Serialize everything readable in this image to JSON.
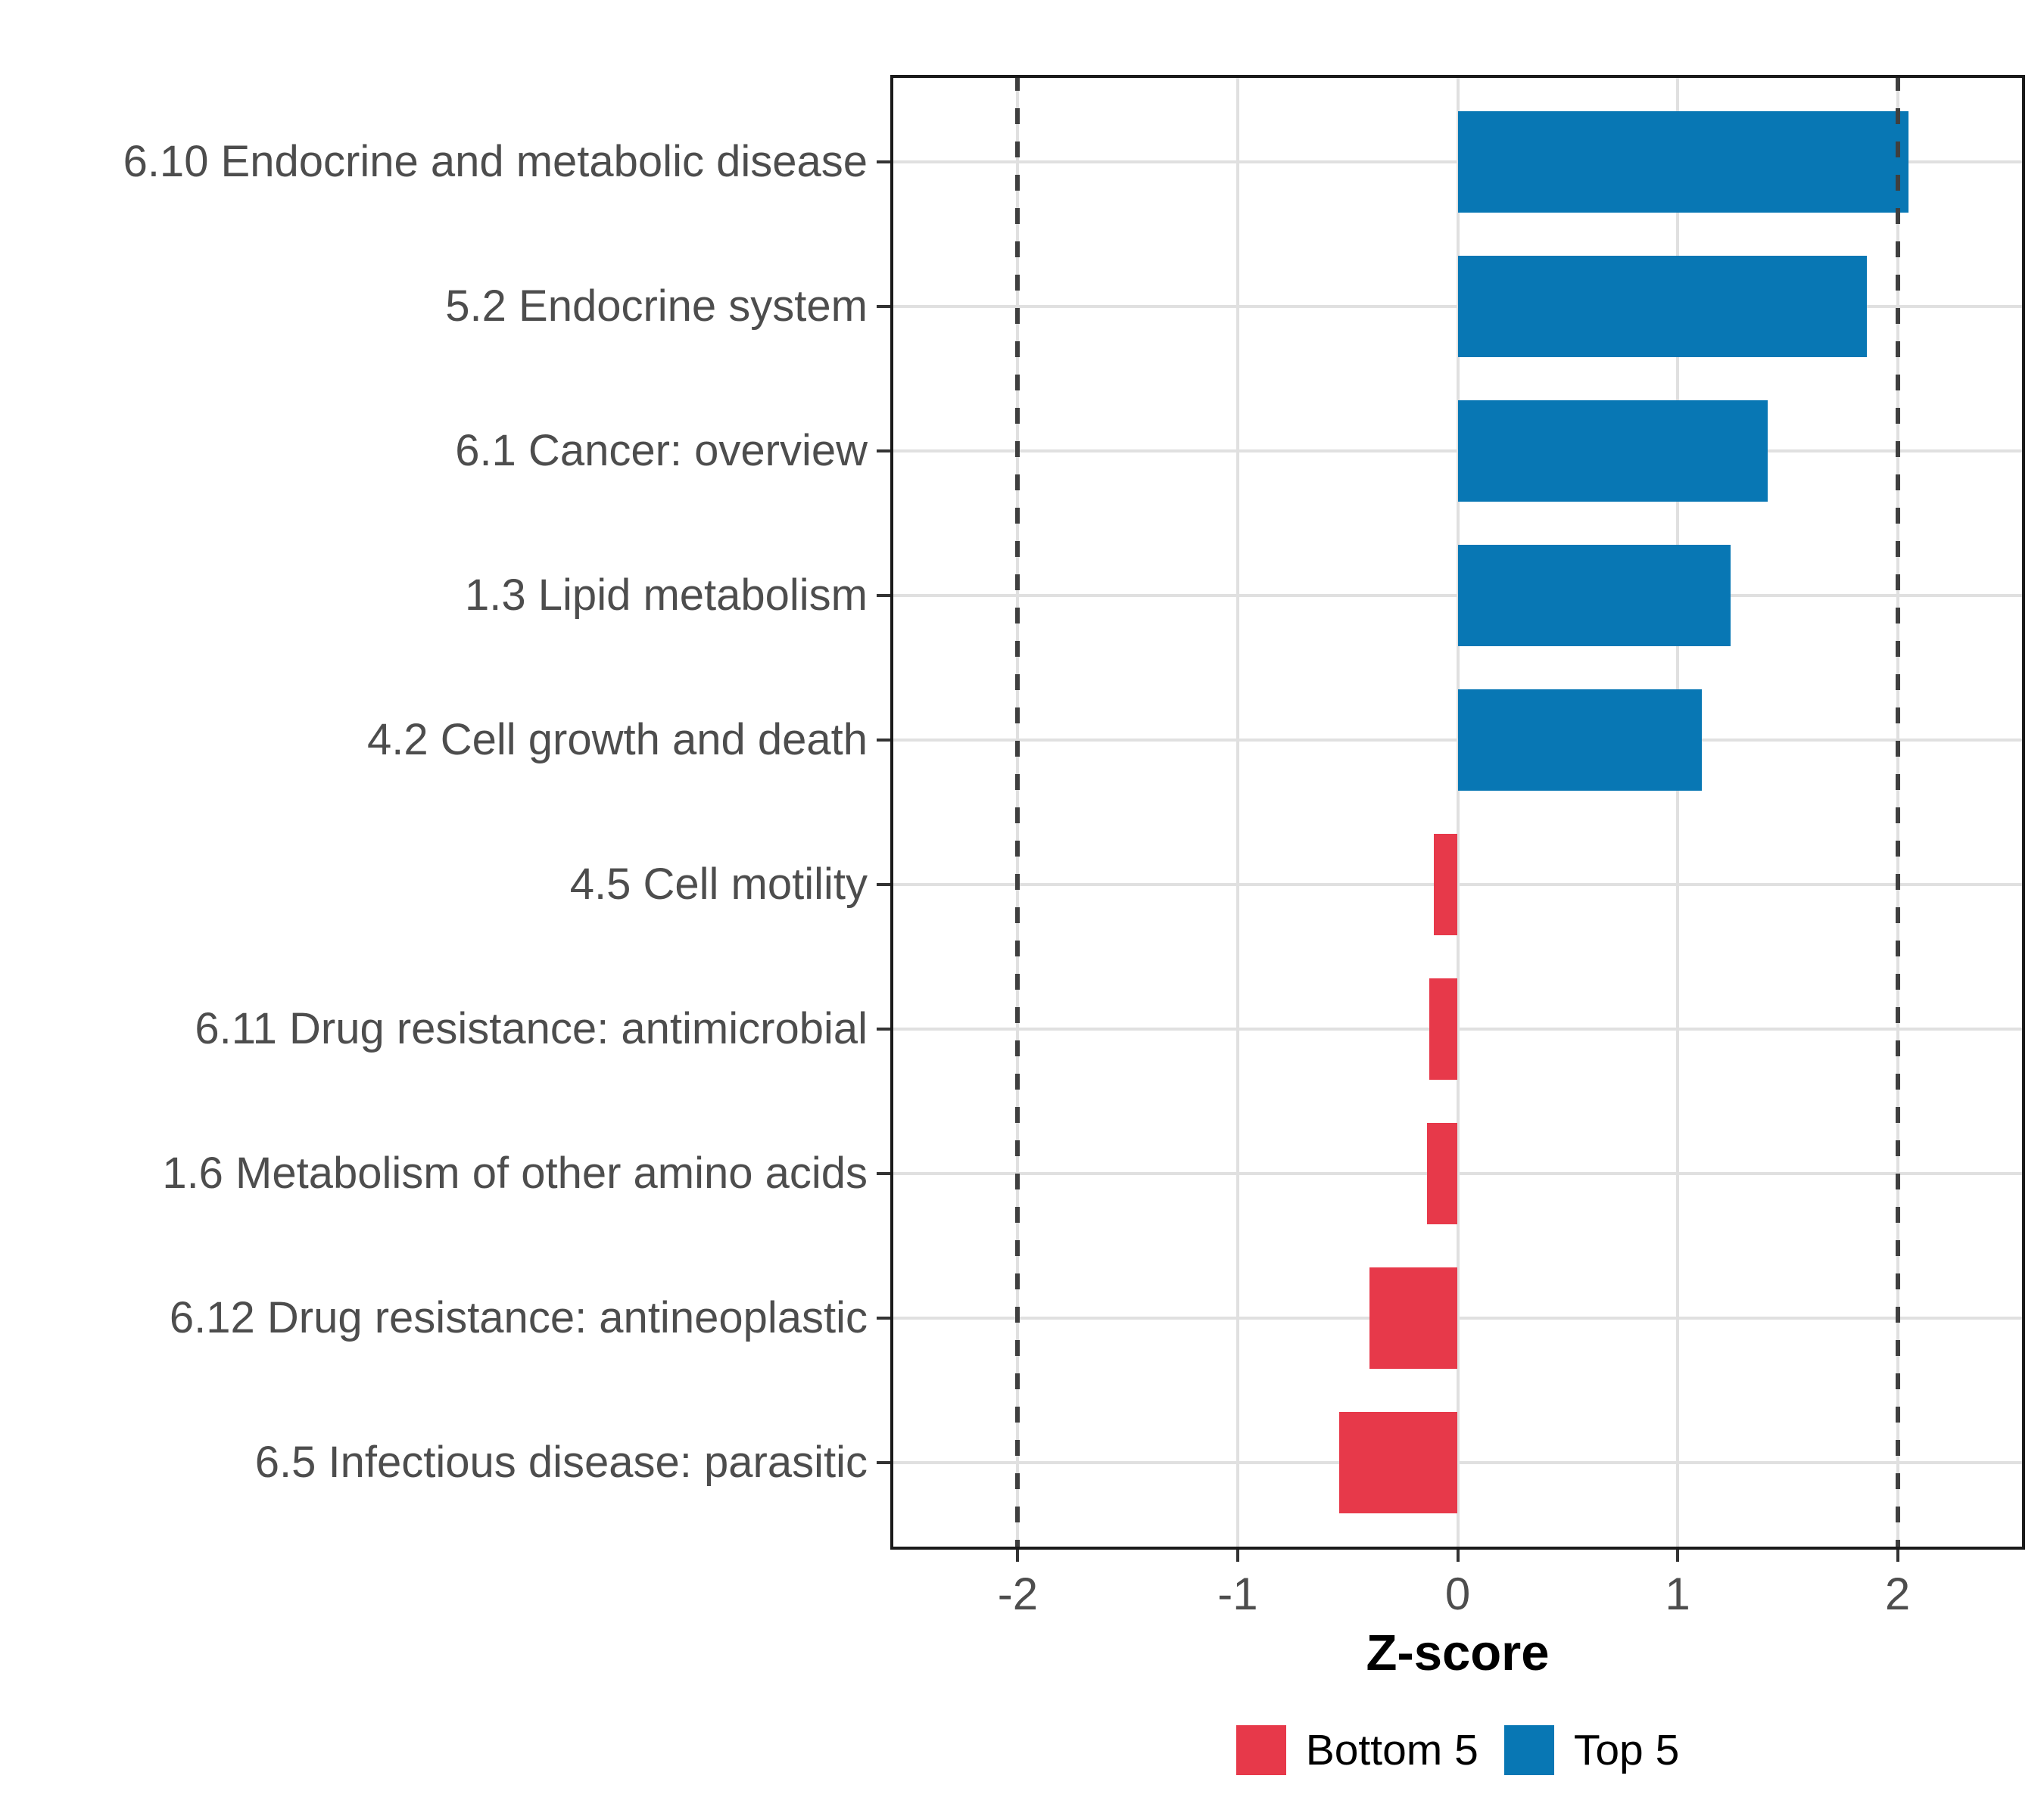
{
  "chart_data": {
    "type": "bar",
    "orientation": "horizontal",
    "title": "",
    "xlabel": "Z-score",
    "ylabel": "",
    "xlim": [
      -2.58,
      2.58
    ],
    "x_ticks": [
      -2,
      -1,
      0,
      1,
      2
    ],
    "x_tick_labels": [
      "-2",
      "-1",
      "0",
      "1",
      "2"
    ],
    "grid": "major",
    "legend_position": "bottom",
    "reference_lines": {
      "x": [
        -2,
        2
      ],
      "style": "dashed",
      "color": "#3f3f3f"
    },
    "categories": [
      "6.10 Endocrine and metabolic disease",
      "5.2 Endocrine system",
      "6.1 Cancer: overview",
      "1.3 Lipid metabolism",
      "4.2 Cell growth and death",
      "4.5 Cell motility",
      "6.11 Drug resistance: antimicrobial",
      "1.6 Metabolism of other amino acids",
      "6.12 Drug resistance: antineoplastic",
      "6.5 Infectious disease: parasitic"
    ],
    "values": [
      2.05,
      1.86,
      1.41,
      1.24,
      1.11,
      -0.11,
      -0.13,
      -0.14,
      -0.4,
      -0.54
    ],
    "groups": [
      "Top 5",
      "Top 5",
      "Top 5",
      "Top 5",
      "Top 5",
      "Bottom 5",
      "Bottom 5",
      "Bottom 5",
      "Bottom 5",
      "Bottom 5"
    ],
    "group_colors": {
      "Top 5": "#0877B4",
      "Bottom 5": "#E7394A"
    },
    "legend": [
      {
        "label": "Bottom 5",
        "color": "#E7394A"
      },
      {
        "label": "Top 5",
        "color": "#0877B4"
      }
    ]
  },
  "style_colors": {
    "grid": "#e0e0e0",
    "panel_border": "#1a1a1a",
    "axis_text": "#4d4d4d",
    "tick": "#333333"
  }
}
